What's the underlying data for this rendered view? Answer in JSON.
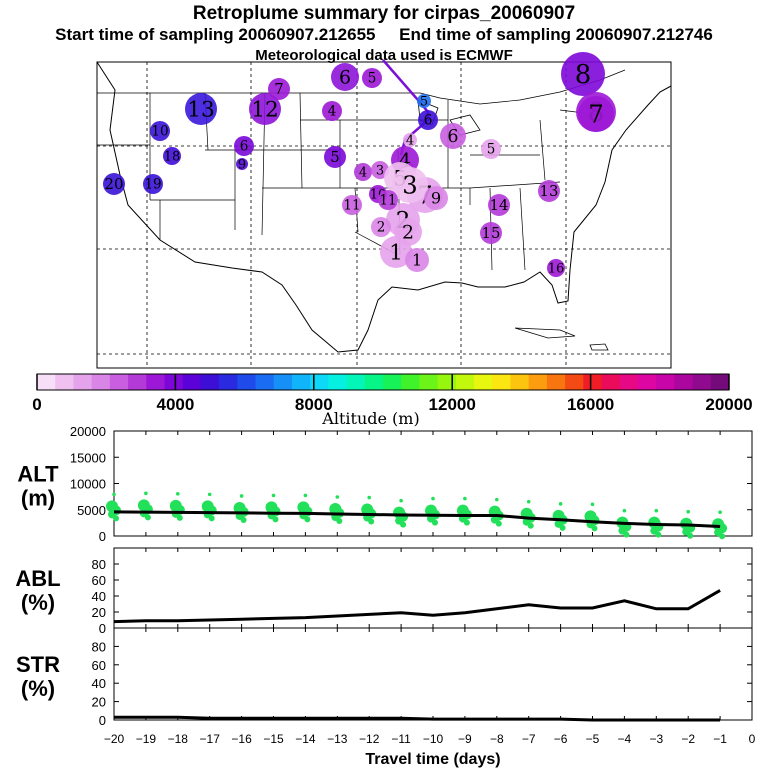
{
  "header": {
    "title": "Retroplume summary for cirpas_20060907",
    "start_label": "Start time of sampling 20060907.212655",
    "end_label": "End time of sampling 20060907.212746",
    "met_label": "Meteorological data used is ECMWF"
  },
  "colorbar": {
    "ticks": [
      "0",
      "4000",
      "8000",
      "12000",
      "16000",
      "20000"
    ],
    "tick_values": [
      0,
      4000,
      8000,
      12000,
      16000,
      20000
    ],
    "label": "Altitude (m)",
    "colors": [
      "#f7e0f7",
      "#efc0f0",
      "#e5a3ec",
      "#d985e6",
      "#c95ee0",
      "#b43ad8",
      "#9d18d6",
      "#7c07d8",
      "#5a02d8",
      "#3d0fd6",
      "#2a2be0",
      "#1e4bea",
      "#1a6cf2",
      "#1690f7",
      "#10b5f9",
      "#0cd9f7",
      "#05f0e0",
      "#03f5b8",
      "#07f587",
      "#16f257",
      "#3ff22a",
      "#6cf317",
      "#97f60d",
      "#c2f80b",
      "#e7f70f",
      "#fbe612",
      "#fcc40f",
      "#fb9d0f",
      "#f8750f",
      "#f44b14",
      "#f01d27",
      "#eb0b5b",
      "#e60884",
      "#dd06a3",
      "#c705a8",
      "#ab069e",
      "#900a90",
      "#750b7a"
    ]
  },
  "map_markers": [
    {
      "label": "20",
      "color": "#3a12d8"
    },
    {
      "label": "19",
      "color": "#3a12d8"
    },
    {
      "label": "18",
      "color": "#3f0cd8"
    },
    {
      "label": "13",
      "color": "#3a18dc"
    },
    {
      "label": "12",
      "color": "#8d14d8"
    },
    {
      "label": "7",
      "color": "#9b18d6"
    },
    {
      "label": "8",
      "color": "#7d08d8"
    },
    {
      "label": "10",
      "color": "#3a12d8"
    },
    {
      "label": "9",
      "color": "#5208d8"
    },
    {
      "label": "6",
      "color": "#8d14d8"
    },
    {
      "label": "6",
      "color": "#7a08d8"
    },
    {
      "label": "5",
      "color": "#7a08d8"
    },
    {
      "label": "4",
      "color": "#9d18d6"
    },
    {
      "label": "5",
      "color": "#9d18d6"
    },
    {
      "label": "4",
      "color": "#b43ad8"
    },
    {
      "label": "3",
      "color": "#c95ee0"
    },
    {
      "label": "2",
      "color": "#d985e6"
    },
    {
      "label": "6",
      "color": "#3d0fd6"
    },
    {
      "label": "5",
      "color": "#1e70f0"
    },
    {
      "label": "4",
      "color": "#9d18d6"
    },
    {
      "label": "7",
      "color": "#e5a3ec"
    },
    {
      "label": "5",
      "color": "#efc0f0"
    },
    {
      "label": "3",
      "color": "#efc0f0"
    },
    {
      "label": "2",
      "color": "#e5a3ec"
    },
    {
      "label": "1",
      "color": "#e5a3ec"
    },
    {
      "label": "9",
      "color": "#d985e6"
    },
    {
      "label": "10",
      "color": "#9d18d6"
    },
    {
      "label": "11",
      "color": "#c95ee0"
    },
    {
      "label": "11",
      "color": "#b43ad8"
    },
    {
      "label": "2",
      "color": "#d985e6"
    },
    {
      "label": "2",
      "color": "#e5a3ec"
    },
    {
      "label": "1",
      "color": "#d985e6"
    },
    {
      "label": "4",
      "color": "#e5a3ec"
    },
    {
      "label": "6",
      "color": "#c95ee0"
    },
    {
      "label": "5",
      "color": "#e5a3ec"
    },
    {
      "label": "8",
      "color": "#9d18d6"
    },
    {
      "label": "7",
      "color": "#9d18d6"
    },
    {
      "label": "13",
      "color": "#b43ad8"
    },
    {
      "label": "14",
      "color": "#b43ad8"
    },
    {
      "label": "15",
      "color": "#b43ad8"
    },
    {
      "label": "16",
      "color": "#9d18d6"
    }
  ],
  "chart_data": [
    {
      "type": "scatter",
      "title": "ALT (m)",
      "ylabel": "ALT\n(m)",
      "xlabel": "Travel time (days)",
      "xlim": [
        -20,
        0
      ],
      "ylim": [
        0,
        20000
      ],
      "yticks": [
        "20000",
        "15000",
        "10000",
        "5000",
        "0"
      ],
      "ytick_values": [
        20000,
        15000,
        10000,
        5000,
        0
      ],
      "series": [
        {
          "name": "mean altitude",
          "x": [
            -20,
            -19,
            -18,
            -17,
            -16,
            -15,
            -14,
            -13,
            -12,
            -11,
            -10,
            -9,
            -8,
            -7,
            -6,
            -5,
            -4,
            -3,
            -2,
            -1
          ],
          "values": [
            4600,
            4550,
            4500,
            4450,
            4400,
            4350,
            4300,
            4200,
            4100,
            4000,
            3950,
            3900,
            3900,
            3400,
            3100,
            2700,
            2400,
            2200,
            2100,
            1800
          ]
        },
        {
          "name": "plume clusters (green)",
          "x": [
            -20,
            -19,
            -18,
            -17,
            -16,
            -15,
            -14,
            -13,
            -12,
            -11,
            -10,
            -9,
            -8,
            -7,
            -6,
            -5,
            -4,
            -3,
            -2,
            -1
          ],
          "values": [
            4500,
            4700,
            4600,
            4500,
            4200,
            4300,
            4300,
            4000,
            3900,
            3300,
            3700,
            3700,
            3500,
            3100,
            2700,
            2600,
            1400,
            1400,
            1200,
            1100
          ]
        }
      ]
    },
    {
      "type": "line",
      "title": "ABL (%)",
      "ylabel": "ABL\n(%)",
      "xlim": [
        -20,
        0
      ],
      "ylim": [
        0,
        100
      ],
      "yticks": [
        "80",
        "60",
        "40",
        "20",
        "0"
      ],
      "ytick_values": [
        80,
        60,
        40,
        20,
        0
      ],
      "series": [
        {
          "name": "ABL fraction",
          "x": [
            -20,
            -19,
            -18,
            -17,
            -16,
            -15,
            -14,
            -13,
            -12,
            -11,
            -10,
            -9,
            -8,
            -7,
            -6,
            -5,
            -4,
            -3,
            -2,
            -1
          ],
          "values": [
            8,
            9,
            9,
            10,
            11,
            12,
            13,
            15,
            17,
            19,
            16,
            19,
            24,
            29,
            25,
            25,
            34,
            24,
            24,
            47
          ]
        }
      ]
    },
    {
      "type": "line",
      "title": "STR (%)",
      "ylabel": "STR\n(%)",
      "xlim": [
        -20,
        0
      ],
      "ylim": [
        0,
        100
      ],
      "yticks": [
        "80",
        "60",
        "40",
        "20",
        "0"
      ],
      "ytick_values": [
        80,
        60,
        40,
        20,
        0
      ],
      "xticks": [
        "−20",
        "−19",
        "−18",
        "−17",
        "−16",
        "−15",
        "−14",
        "−13",
        "−12",
        "−11",
        "−10",
        "−9",
        "−8",
        "−7",
        "−6",
        "−5",
        "−4",
        "−3",
        "−2",
        "−1",
        "0"
      ],
      "xtick_values": [
        -20,
        -19,
        -18,
        -17,
        -16,
        -15,
        -14,
        -13,
        -12,
        -11,
        -10,
        -9,
        -8,
        -7,
        -6,
        -5,
        -4,
        -3,
        -2,
        -1,
        0
      ],
      "series": [
        {
          "name": "STR fraction",
          "x": [
            -20,
            -19,
            -18,
            -17,
            -16,
            -15,
            -14,
            -13,
            -12,
            -11,
            -10,
            -9,
            -8,
            -7,
            -6,
            -5,
            -4,
            -3,
            -2,
            -1
          ],
          "values": [
            3,
            3,
            3,
            2,
            2,
            2,
            2,
            2,
            2,
            2,
            1,
            1,
            1,
            1,
            1,
            0,
            0,
            0,
            0,
            0
          ]
        }
      ]
    }
  ]
}
